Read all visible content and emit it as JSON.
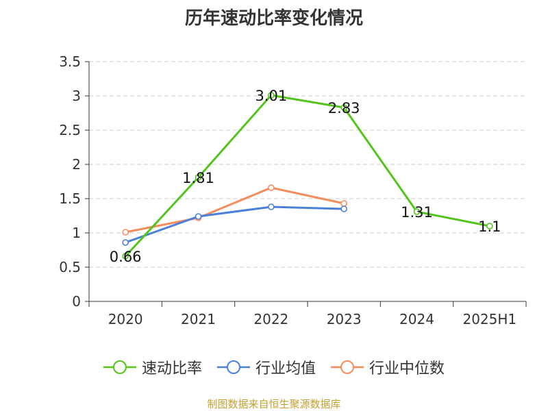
{
  "chart_data": {
    "type": "line",
    "title": "历年速动比率变化情况",
    "categories": [
      "2020",
      "2021",
      "2022",
      "2023",
      "2024",
      "2025H1"
    ],
    "ylim": [
      0,
      3.5
    ],
    "yticks": [
      "0",
      "0.5",
      "1",
      "1.5",
      "2",
      "2.5",
      "3",
      "3.5"
    ],
    "grid": "horizontal dashed",
    "legend_position": "bottom",
    "series": [
      {
        "name": "速动比率",
        "color": "#52c41a",
        "values": [
          0.66,
          1.81,
          3.01,
          2.83,
          1.31,
          1.1
        ],
        "labels": [
          "0.66",
          "1.81",
          "3.01",
          "2.83",
          "1.31",
          "1.1"
        ]
      },
      {
        "name": "行业均值",
        "color": "#4a7fdc",
        "values": [
          0.86,
          1.24,
          1.38,
          1.35,
          null,
          null
        ]
      },
      {
        "name": "行业中位数",
        "color": "#f58c5a",
        "values": [
          1.01,
          1.22,
          1.66,
          1.43,
          null,
          null
        ]
      }
    ]
  },
  "source_note": "制图数据来自恒生聚源数据库"
}
